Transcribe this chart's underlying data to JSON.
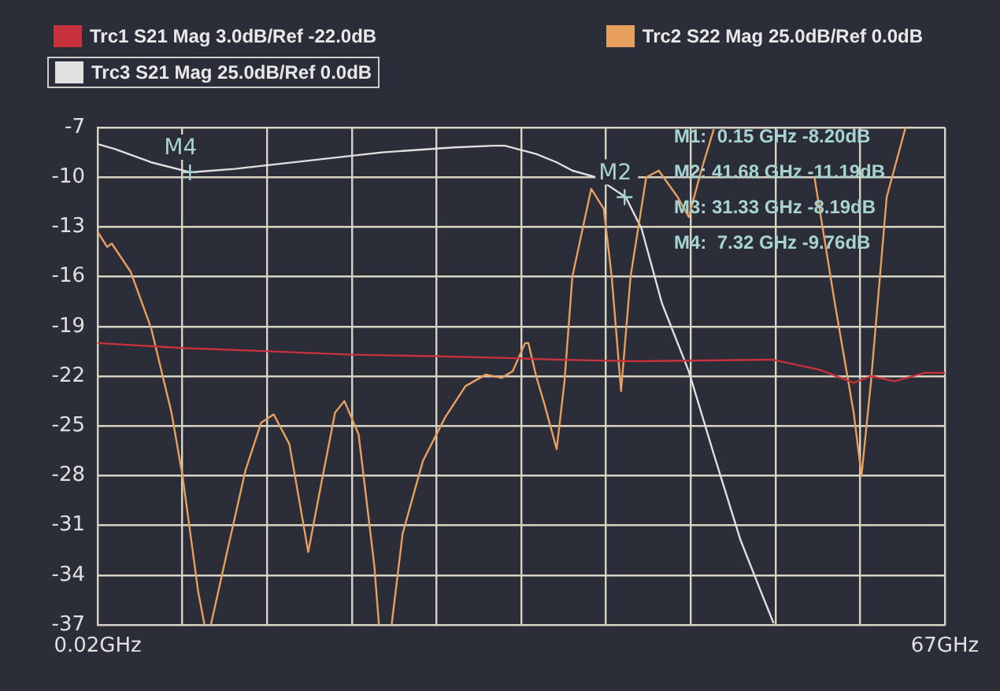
{
  "chart_data": {
    "type": "line",
    "xlim": [
      0.02,
      67
    ],
    "xticks": [
      {
        "value": 0.02,
        "label": "0.02GHz"
      },
      {
        "value": 6.718,
        "label": null
      },
      {
        "value": 13.416,
        "label": null
      },
      {
        "value": 20.114,
        "label": null
      },
      {
        "value": 26.812,
        "label": null
      },
      {
        "value": 33.51,
        "label": null
      },
      {
        "value": 40.208,
        "label": null
      },
      {
        "value": 46.906,
        "label": null
      },
      {
        "value": 53.604,
        "label": null
      },
      {
        "value": 60.302,
        "label": null
      },
      {
        "value": 67,
        "label": "67GHz"
      }
    ],
    "ylim": [
      -37,
      -7
    ],
    "yticks": [
      -37,
      -34,
      -31,
      -28,
      -25,
      -22,
      -19,
      -16,
      -13,
      -10,
      -7
    ],
    "grid": true,
    "legend": "top",
    "marker": "none",
    "line_style": "solid",
    "series": [
      {
        "name": "Trc1 S21 Mag 3.0dB/Ref -22.0dB",
        "color": "#c8323c",
        "x": [
          0.02,
          6.73,
          13.57,
          20.03,
          26.86,
          32.45,
          36.31,
          42.52,
          53.33,
          57.06,
          59.79,
          61.16,
          63.02,
          65.38,
          67.0
        ],
        "values": [
          -20.0,
          -20.3,
          -20.5,
          -20.7,
          -20.8,
          -20.9,
          -21.0,
          -21.1,
          -21.0,
          -21.6,
          -22.4,
          -22.0,
          -22.3,
          -21.8,
          -21.8
        ]
      },
      {
        "name": "Trc2 S22 Mag 25.0dB/Ref 0.0dB",
        "color": "#e8a060",
        "x": [
          0.02,
          0.77,
          1.14,
          2.63,
          4.25,
          5.86,
          6.73,
          7.97,
          8.47,
          8.72,
          8.97,
          10.46,
          11.7,
          12.95,
          13.94,
          15.18,
          16.67,
          17.67,
          18.79,
          19.53,
          20.65,
          21.89,
          22.26,
          22.76,
          23.26,
          24.13,
          25.74,
          27.48,
          29.1,
          30.71,
          31.96,
          32.83,
          33.82,
          34.07,
          34.69,
          35.31,
          36.31,
          36.93,
          37.55,
          39.04,
          40.03,
          40.66,
          41.4,
          42.15,
          43.39,
          44.38,
          45.88,
          46.75,
          47.74,
          48.73,
          52.0,
          56.69,
          58.3,
          59.79,
          60.41,
          61.16,
          62.4,
          63.89
        ],
        "values": [
          -13.3,
          -14.2,
          -14.0,
          -15.7,
          -19.1,
          -24.2,
          -28.0,
          -35.0,
          -37.0,
          null,
          -37.0,
          -31.9,
          -27.7,
          -24.8,
          -24.3,
          -26.1,
          -32.6,
          -28.6,
          -24.2,
          -23.5,
          -25.5,
          -33.4,
          -37.0,
          null,
          -37.0,
          -31.5,
          -27.1,
          -24.5,
          -22.6,
          -21.9,
          -22.1,
          -21.7,
          -20.0,
          -20.0,
          -22.0,
          -23.6,
          -26.4,
          -22.3,
          -16.0,
          -10.7,
          -11.9,
          -16.0,
          -22.9,
          -16.0,
          -10.0,
          -9.6,
          -11.2,
          -12.4,
          -9.6,
          -7.1,
          null,
          -10.0,
          -17.6,
          -24.2,
          -28.0,
          -22.3,
          -11.2,
          -7.0
        ]
      },
      {
        "name": "Trc3 S21 Mag 25.0dB/Ref 0.0dB",
        "color": "#e0e0e0",
        "x": [
          0.02,
          1.39,
          4.25,
          7.35,
          10.83,
          16.67,
          22.51,
          28.23,
          31.34,
          32.21,
          34.69,
          36.31,
          37.55,
          39.41,
          41.77,
          43.02,
          44.63,
          46.75,
          48.73,
          50.85,
          52.46,
          53.46
        ],
        "values": [
          -8.0,
          -8.3,
          -9.1,
          -9.7,
          -9.5,
          -9.0,
          -8.5,
          -8.2,
          -8.1,
          -8.1,
          -8.6,
          -9.1,
          -9.6,
          -10.0,
          -11.2,
          -13.1,
          -17.6,
          -21.7,
          -26.7,
          -31.9,
          -35.0,
          -36.9
        ]
      }
    ],
    "annotations": [
      {
        "text": "M4",
        "x": 7.32,
        "y": -9.7
      },
      {
        "text": "M2",
        "x": 41.68,
        "y": -11.2
      },
      "M1:  0.15 GHz -8.20dB",
      "M2: 41.68 GHz -11.19dB",
      "M3: 31.33 GHz -8.19dB",
      "M4:  7.32 GHz -9.76dB"
    ]
  }
}
